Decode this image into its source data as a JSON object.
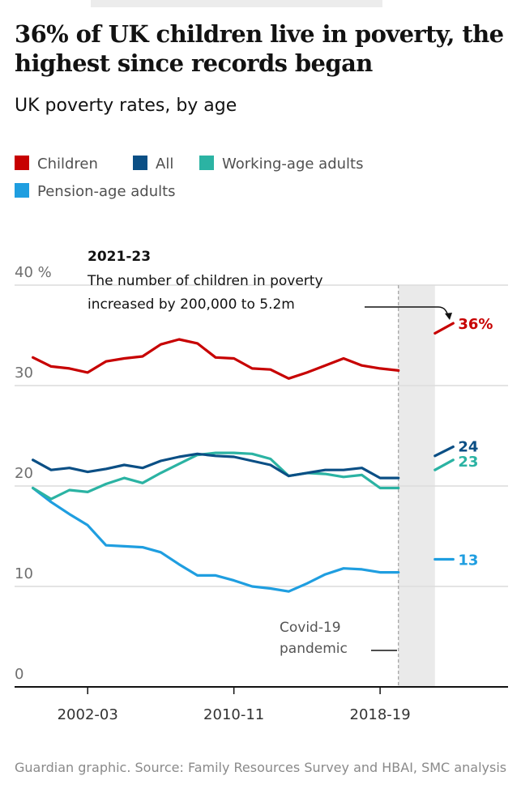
{
  "header": {
    "title": "36% of UK children live in poverty, the highest since records began",
    "subtitle": "UK poverty rates, by age"
  },
  "legend": [
    {
      "label": "Children",
      "color": "#c70000"
    },
    {
      "label": "All",
      "color": "#0b4f85"
    },
    {
      "label": "Working-age adults",
      "color": "#2bb3a3"
    },
    {
      "label": "Pension-age adults",
      "color": "#1f9ee0"
    }
  ],
  "annotation": {
    "heading": "2021-23",
    "line1": "The number of children in poverty",
    "line2": "increased by 200,000 to 5.2m"
  },
  "covid": {
    "line1": "Covid-19",
    "line2": "pandemic"
  },
  "footer": "Guardian graphic. Source: Family Resources Survey and HBAI, SMC analysis",
  "chart_data": {
    "type": "line",
    "title": "UK poverty rates, by age",
    "ylim": [
      0,
      40
    ],
    "y_ticks": [
      "0",
      "10",
      "20",
      "30",
      "40 %"
    ],
    "x_ticks": [
      "2002-03",
      "2010-11",
      "2018-19"
    ],
    "x_tick_positions": [
      2002.5,
      2010.5,
      2018.5
    ],
    "xlim": [
      1998.5,
      2025.5
    ],
    "shaded_range": [
      2019.5,
      2021.5
    ],
    "series": [
      {
        "name": "Children",
        "color": "#c70000",
        "end_label": "36%",
        "x": [
          1999.5,
          2000.5,
          2001.5,
          2002.5,
          2003.5,
          2004.5,
          2005.5,
          2006.5,
          2007.5,
          2008.5,
          2009.5,
          2010.5,
          2011.5,
          2012.5,
          2013.5,
          2014.5,
          2015.5,
          2016.5,
          2017.5,
          2018.5,
          2019.5
        ],
        "values": [
          32.8,
          31.9,
          31.7,
          31.3,
          32.4,
          32.7,
          32.9,
          34.1,
          34.6,
          34.2,
          32.8,
          32.7,
          31.7,
          31.6,
          30.7,
          31.3,
          32.0,
          32.7,
          32.0,
          31.7,
          31.5
        ],
        "recent_x": [
          2021.5,
          2022.5
        ],
        "recent_values": [
          35.2,
          36.2
        ]
      },
      {
        "name": "All",
        "color": "#0b4f85",
        "end_label": "24",
        "x": [
          1999.5,
          2000.5,
          2001.5,
          2002.5,
          2003.5,
          2004.5,
          2005.5,
          2006.5,
          2007.5,
          2008.5,
          2009.5,
          2010.5,
          2011.5,
          2012.5,
          2013.5,
          2014.5,
          2015.5,
          2016.5,
          2017.5,
          2018.5,
          2019.5
        ],
        "values": [
          22.6,
          21.6,
          21.8,
          21.4,
          21.7,
          22.1,
          21.8,
          22.5,
          22.9,
          23.2,
          23.0,
          22.9,
          22.5,
          22.1,
          21.0,
          21.3,
          21.6,
          21.6,
          21.8,
          20.8,
          20.8
        ],
        "recent_x": [
          2021.5,
          2022.5
        ],
        "recent_values": [
          23.0,
          23.9
        ]
      },
      {
        "name": "Working-age adults",
        "color": "#2bb3a3",
        "end_label": "23",
        "x": [
          1999.5,
          2000.5,
          2001.5,
          2002.5,
          2003.5,
          2004.5,
          2005.5,
          2006.5,
          2007.5,
          2008.5,
          2009.5,
          2010.5,
          2011.5,
          2012.5,
          2013.5,
          2014.5,
          2015.5,
          2016.5,
          2017.5,
          2018.5,
          2019.5
        ],
        "values": [
          19.8,
          18.7,
          19.6,
          19.4,
          20.2,
          20.8,
          20.3,
          21.3,
          22.2,
          23.1,
          23.3,
          23.3,
          23.2,
          22.7,
          21.0,
          21.3,
          21.2,
          20.9,
          21.1,
          19.8,
          19.8
        ],
        "recent_x": [
          2021.5,
          2022.5
        ],
        "recent_values": [
          21.6,
          22.6
        ]
      },
      {
        "name": "Pension-age adults",
        "color": "#1f9ee0",
        "end_label": "13",
        "x": [
          1999.5,
          2000.5,
          2001.5,
          2002.5,
          2003.5,
          2004.5,
          2005.5,
          2006.5,
          2007.5,
          2008.5,
          2009.5,
          2010.5,
          2011.5,
          2012.5,
          2013.5,
          2014.5,
          2015.5,
          2016.5,
          2017.5,
          2018.5,
          2019.5
        ],
        "values": [
          19.8,
          18.4,
          17.2,
          16.1,
          14.1,
          14.0,
          13.9,
          13.4,
          12.2,
          11.1,
          11.1,
          10.6,
          10.0,
          9.8,
          9.5,
          10.3,
          11.2,
          11.8,
          11.7,
          11.4,
          11.4
        ],
        "recent_x": [
          2021.5,
          2022.5
        ],
        "recent_values": [
          12.7,
          12.7
        ]
      }
    ]
  }
}
